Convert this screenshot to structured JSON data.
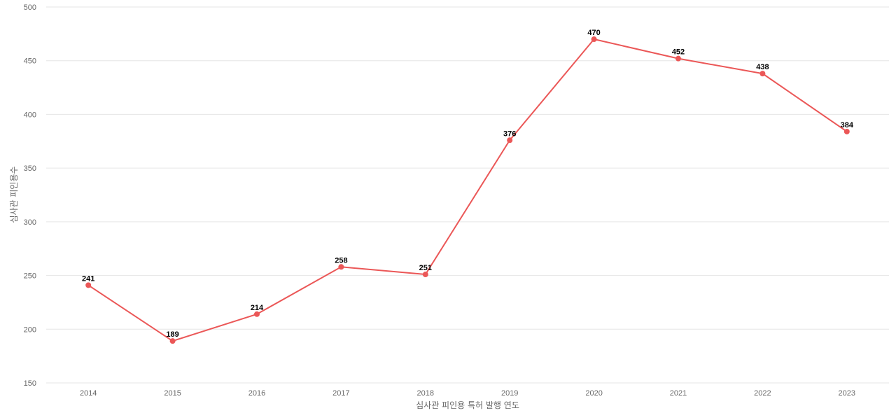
{
  "chart_data": {
    "type": "line",
    "categories": [
      "2014",
      "2015",
      "2016",
      "2017",
      "2018",
      "2019",
      "2020",
      "2021",
      "2022",
      "2023"
    ],
    "series": [
      {
        "values": [
          241,
          189,
          214,
          258,
          251,
          376,
          470,
          452,
          438,
          384
        ]
      }
    ],
    "xlabel": "심사관 피인용 특허 발행 연도",
    "ylabel": "심사관 피인용수",
    "ylim": [
      150,
      500
    ],
    "yticks": [
      150,
      200,
      250,
      300,
      350,
      400,
      450,
      500
    ],
    "grid": true,
    "data_labels": true,
    "colors": {
      "line": "#eb5757",
      "grid": "#e6e6e6",
      "text": "#666666"
    }
  }
}
